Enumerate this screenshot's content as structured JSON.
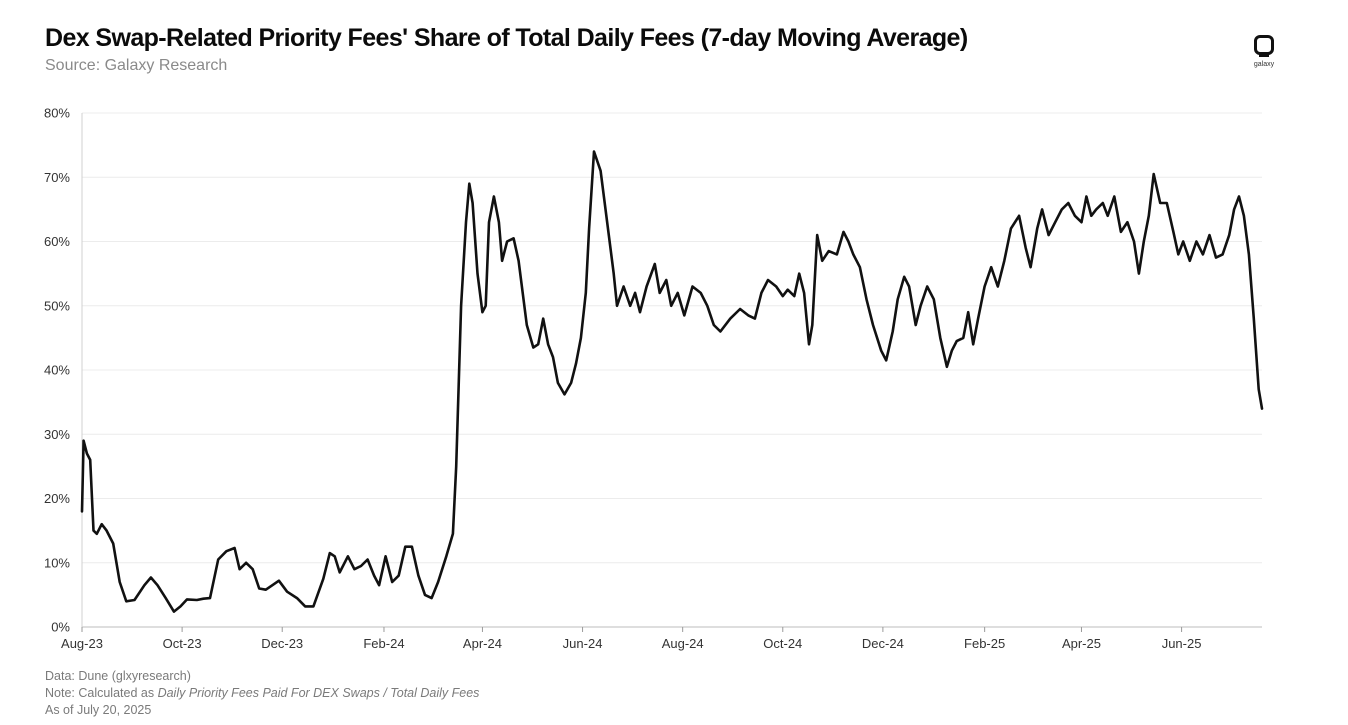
{
  "header": {
    "title": "Dex Swap-Related Priority Fees' Share of Total Daily Fees (7-day Moving Average)",
    "subtitle": "Source: Galaxy Research",
    "logo_text": "galaxy"
  },
  "footer": {
    "data_line": "Data: Dune (glxyresearch)",
    "note_prefix": "Note: Calculated as ",
    "note_formula": "Daily Priority Fees Paid For DEX Swaps / Total Daily Fees",
    "as_of": "As of July 20, 2025"
  },
  "colors": {
    "line": "#111111",
    "grid": "#ececec",
    "axis_text": "#333333"
  },
  "chart_data": {
    "type": "line",
    "title": "Dex Swap-Related Priority Fees' Share of Total Daily Fees (7-day Moving Average)",
    "xlabel": "",
    "ylabel": "",
    "grid": true,
    "x_range": [
      "2023-08-01",
      "2025-07-20"
    ],
    "ylim": [
      0,
      80
    ],
    "y_ticks": [
      0,
      10,
      20,
      30,
      40,
      50,
      60,
      70,
      80
    ],
    "y_tick_labels": [
      "0%",
      "10%",
      "20%",
      "30%",
      "40%",
      "50%",
      "60%",
      "70%",
      "80%"
    ],
    "x_ticks": [
      "2023-08-01",
      "2023-10-01",
      "2023-12-01",
      "2024-02-01",
      "2024-04-01",
      "2024-06-01",
      "2024-08-01",
      "2024-10-01",
      "2024-12-01",
      "2025-02-01",
      "2025-04-01",
      "2025-06-01"
    ],
    "x_tick_labels": [
      "Aug-23",
      "Oct-23",
      "Dec-23",
      "Feb-24",
      "Apr-24",
      "Jun-24",
      "Aug-24",
      "Oct-24",
      "Dec-24",
      "Feb-25",
      "Apr-25",
      "Jun-25"
    ],
    "series": [
      {
        "points": [
          [
            "2023-08-01",
            18
          ],
          [
            "2023-08-02",
            29
          ],
          [
            "2023-08-04",
            27
          ],
          [
            "2023-08-06",
            26
          ],
          [
            "2023-08-08",
            15
          ],
          [
            "2023-08-10",
            14.5
          ],
          [
            "2023-08-13",
            16
          ],
          [
            "2023-08-16",
            15
          ],
          [
            "2023-08-20",
            13
          ],
          [
            "2023-08-24",
            7
          ],
          [
            "2023-08-28",
            4
          ],
          [
            "2023-09-02",
            4.2
          ],
          [
            "2023-09-08",
            6.5
          ],
          [
            "2023-09-12",
            7.7
          ],
          [
            "2023-09-16",
            6.5
          ],
          [
            "2023-09-21",
            4.5
          ],
          [
            "2023-09-26",
            2.4
          ],
          [
            "2023-09-30",
            3.2
          ],
          [
            "2023-10-04",
            4.3
          ],
          [
            "2023-10-10",
            4.2
          ],
          [
            "2023-10-14",
            4.4
          ],
          [
            "2023-10-18",
            4.5
          ],
          [
            "2023-10-23",
            10.5
          ],
          [
            "2023-10-28",
            11.8
          ],
          [
            "2023-11-02",
            12.3
          ],
          [
            "2023-11-05",
            9
          ],
          [
            "2023-11-09",
            10
          ],
          [
            "2023-11-13",
            9
          ],
          [
            "2023-11-17",
            6
          ],
          [
            "2023-11-21",
            5.8
          ],
          [
            "2023-11-25",
            6.5
          ],
          [
            "2023-11-29",
            7.2
          ],
          [
            "2023-12-04",
            5.5
          ],
          [
            "2023-12-10",
            4.5
          ],
          [
            "2023-12-15",
            3.2
          ],
          [
            "2023-12-20",
            3.2
          ],
          [
            "2023-12-26",
            7.5
          ],
          [
            "2023-12-30",
            11.5
          ],
          [
            "2024-01-02",
            11
          ],
          [
            "2024-01-05",
            8.5
          ],
          [
            "2024-01-10",
            11
          ],
          [
            "2024-01-14",
            9
          ],
          [
            "2024-01-18",
            9.5
          ],
          [
            "2024-01-22",
            10.5
          ],
          [
            "2024-01-26",
            8
          ],
          [
            "2024-01-29",
            6.5
          ],
          [
            "2024-02-02",
            11
          ],
          [
            "2024-02-06",
            7
          ],
          [
            "2024-02-10",
            8
          ],
          [
            "2024-02-14",
            12.5
          ],
          [
            "2024-02-18",
            12.5
          ],
          [
            "2024-02-22",
            8
          ],
          [
            "2024-02-26",
            5
          ],
          [
            "2024-03-01",
            4.5
          ],
          [
            "2024-03-05",
            7
          ],
          [
            "2024-03-10",
            11
          ],
          [
            "2024-03-14",
            14.5
          ],
          [
            "2024-03-16",
            25
          ],
          [
            "2024-03-19",
            50
          ],
          [
            "2024-03-22",
            63
          ],
          [
            "2024-03-24",
            69
          ],
          [
            "2024-03-26",
            66
          ],
          [
            "2024-03-29",
            55
          ],
          [
            "2024-04-01",
            49
          ],
          [
            "2024-04-03",
            50
          ],
          [
            "2024-04-05",
            63
          ],
          [
            "2024-04-08",
            67
          ],
          [
            "2024-04-11",
            63
          ],
          [
            "2024-04-13",
            57
          ],
          [
            "2024-04-16",
            60
          ],
          [
            "2024-04-20",
            60.5
          ],
          [
            "2024-04-23",
            57
          ],
          [
            "2024-04-28",
            47
          ],
          [
            "2024-05-02",
            43.5
          ],
          [
            "2024-05-05",
            44
          ],
          [
            "2024-05-08",
            48
          ],
          [
            "2024-05-11",
            44
          ],
          [
            "2024-05-14",
            42
          ],
          [
            "2024-05-17",
            38
          ],
          [
            "2024-05-21",
            36.2
          ],
          [
            "2024-05-25",
            38
          ],
          [
            "2024-05-28",
            41
          ],
          [
            "2024-05-31",
            45
          ],
          [
            "2024-06-03",
            52
          ],
          [
            "2024-06-05",
            62
          ],
          [
            "2024-06-08",
            74
          ],
          [
            "2024-06-12",
            71
          ],
          [
            "2024-06-17",
            61
          ],
          [
            "2024-06-20",
            55
          ],
          [
            "2024-06-22",
            50
          ],
          [
            "2024-06-26",
            53
          ],
          [
            "2024-06-30",
            50
          ],
          [
            "2024-07-03",
            52
          ],
          [
            "2024-07-06",
            49
          ],
          [
            "2024-07-10",
            53
          ],
          [
            "2024-07-15",
            56.5
          ],
          [
            "2024-07-18",
            52
          ],
          [
            "2024-07-22",
            54
          ],
          [
            "2024-07-25",
            50
          ],
          [
            "2024-07-29",
            52
          ],
          [
            "2024-08-02",
            48.5
          ],
          [
            "2024-08-07",
            53
          ],
          [
            "2024-08-12",
            52
          ],
          [
            "2024-08-16",
            50
          ],
          [
            "2024-08-20",
            47
          ],
          [
            "2024-08-24",
            46
          ],
          [
            "2024-08-30",
            48
          ],
          [
            "2024-09-05",
            49.5
          ],
          [
            "2024-09-10",
            48.5
          ],
          [
            "2024-09-14",
            48
          ],
          [
            "2024-09-18",
            52
          ],
          [
            "2024-09-22",
            54
          ],
          [
            "2024-09-27",
            53
          ],
          [
            "2024-10-01",
            51.5
          ],
          [
            "2024-10-04",
            52.5
          ],
          [
            "2024-10-08",
            51.5
          ],
          [
            "2024-10-11",
            55
          ],
          [
            "2024-10-14",
            52
          ],
          [
            "2024-10-17",
            44
          ],
          [
            "2024-10-19",
            47
          ],
          [
            "2024-10-22",
            61
          ],
          [
            "2024-10-25",
            57
          ],
          [
            "2024-10-29",
            58.5
          ],
          [
            "2024-11-03",
            58
          ],
          [
            "2024-11-07",
            61.5
          ],
          [
            "2024-11-10",
            60
          ],
          [
            "2024-11-13",
            58
          ],
          [
            "2024-11-17",
            56
          ],
          [
            "2024-11-21",
            51
          ],
          [
            "2024-11-25",
            47
          ],
          [
            "2024-11-30",
            43
          ],
          [
            "2024-12-03",
            41.5
          ],
          [
            "2024-12-07",
            46
          ],
          [
            "2024-12-10",
            51
          ],
          [
            "2024-12-14",
            54.5
          ],
          [
            "2024-12-17",
            53
          ],
          [
            "2024-12-21",
            47
          ],
          [
            "2024-12-24",
            50
          ],
          [
            "2024-12-28",
            53
          ],
          [
            "2025-01-01",
            51
          ],
          [
            "2025-01-05",
            45
          ],
          [
            "2025-01-09",
            40.5
          ],
          [
            "2025-01-12",
            43
          ],
          [
            "2025-01-15",
            44.5
          ],
          [
            "2025-01-19",
            45
          ],
          [
            "2025-01-22",
            49
          ],
          [
            "2025-01-25",
            44
          ],
          [
            "2025-01-28",
            48
          ],
          [
            "2025-02-01",
            53
          ],
          [
            "2025-02-05",
            56
          ],
          [
            "2025-02-09",
            53
          ],
          [
            "2025-02-13",
            57
          ],
          [
            "2025-02-17",
            62
          ],
          [
            "2025-02-22",
            64
          ],
          [
            "2025-02-26",
            59
          ],
          [
            "2025-03-01",
            56
          ],
          [
            "2025-03-05",
            62
          ],
          [
            "2025-03-08",
            65
          ],
          [
            "2025-03-12",
            61
          ],
          [
            "2025-03-16",
            63
          ],
          [
            "2025-03-20",
            65
          ],
          [
            "2025-03-24",
            66
          ],
          [
            "2025-03-28",
            64
          ],
          [
            "2025-04-01",
            63
          ],
          [
            "2025-04-04",
            67
          ],
          [
            "2025-04-07",
            64
          ],
          [
            "2025-04-10",
            65
          ],
          [
            "2025-04-14",
            66
          ],
          [
            "2025-04-17",
            64
          ],
          [
            "2025-04-21",
            67
          ],
          [
            "2025-04-25",
            61.5
          ],
          [
            "2025-04-29",
            63
          ],
          [
            "2025-05-03",
            60
          ],
          [
            "2025-05-06",
            55
          ],
          [
            "2025-05-09",
            60
          ],
          [
            "2025-05-12",
            64
          ],
          [
            "2025-05-15",
            70.5
          ],
          [
            "2025-05-19",
            66
          ],
          [
            "2025-05-23",
            66
          ],
          [
            "2025-05-27",
            61.5
          ],
          [
            "2025-05-30",
            58
          ],
          [
            "2025-06-02",
            60
          ],
          [
            "2025-06-06",
            57
          ],
          [
            "2025-06-10",
            60
          ],
          [
            "2025-06-14",
            58
          ],
          [
            "2025-06-18",
            61
          ],
          [
            "2025-06-22",
            57.5
          ],
          [
            "2025-06-26",
            58
          ],
          [
            "2025-06-30",
            61
          ],
          [
            "2025-07-03",
            65
          ],
          [
            "2025-07-06",
            67
          ],
          [
            "2025-07-09",
            64
          ],
          [
            "2025-07-12",
            58
          ],
          [
            "2025-07-15",
            48
          ],
          [
            "2025-07-18",
            37
          ],
          [
            "2025-07-20",
            34
          ]
        ]
      }
    ]
  }
}
